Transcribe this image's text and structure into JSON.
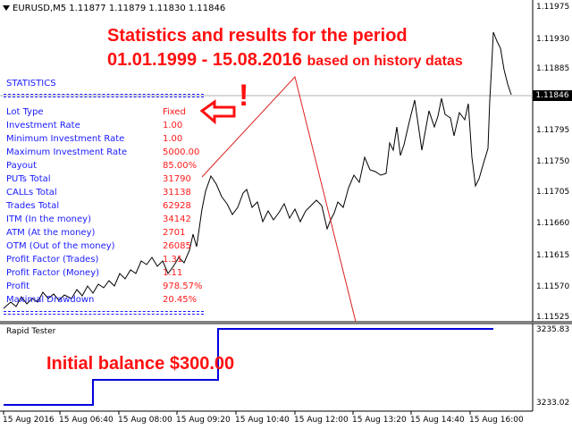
{
  "header": {
    "symbol_info": "EURUSD,M5  1.11877 1.11879 1.11830 1.11846"
  },
  "annotations": {
    "line1": "Statistics and results for the period",
    "line2_main": "01.01.1999 - 15.08.2016",
    "line2_small": "based on history datas",
    "exclamation": "!",
    "initial_balance": "Initial balance $300.00"
  },
  "statistics": {
    "title": "STATISTICS",
    "rows": [
      {
        "label": "Lot Type",
        "value": "Fixed"
      },
      {
        "label": "Investment Rate",
        "value": "1.00"
      },
      {
        "label": "Minimum Investment Rate",
        "value": "1.00"
      },
      {
        "label": "Maximum Investment Rate",
        "value": "5000.00"
      },
      {
        "label": "Payout",
        "value": "85.00%"
      },
      {
        "label": "PUTs Total",
        "value": "31790"
      },
      {
        "label": "CALLs Total",
        "value": "31138"
      },
      {
        "label": "Trades Total",
        "value": "62928"
      },
      {
        "label": "ITM (In the money)",
        "value": "34142"
      },
      {
        "label": "ATM (At the money)",
        "value": "2701"
      },
      {
        "label": "OTM (Out of the money)",
        "value": "26085"
      },
      {
        "label": "Profit Factor (Trades)",
        "value": "1.31"
      },
      {
        "label": "Profit Factor (Money)",
        "value": "1.11"
      },
      {
        "label": "Profit",
        "value": "978.57%"
      },
      {
        "label": "Maximal Drawdown",
        "value": "20.45%"
      }
    ]
  },
  "price_axis": {
    "labels": [
      "1.11975",
      "1.11930",
      "1.11885",
      "1.11795",
      "1.11750",
      "1.11705",
      "1.11660",
      "1.11615",
      "1.11570",
      "1.11525"
    ],
    "current_price": "1.11846"
  },
  "subwindow": {
    "title": "Rapid Tester",
    "top_value": "3235.83",
    "bottom_value": "3233.02"
  },
  "time_axis": {
    "labels": [
      "15 Aug 2016",
      "15 Aug 06:40",
      "15 Aug 08:00",
      "15 Aug 09:20",
      "15 Aug 10:40",
      "15 Aug 12:00",
      "15 Aug 13:20",
      "15 Aug 14:40",
      "15 Aug 16:00"
    ]
  },
  "colors": {
    "stats_label": "#1a1aff",
    "stats_value": "#ff1a1a",
    "annotation": "#ff1010",
    "equity_line": "#0000dd",
    "price_line": "#000000",
    "arrow_line": "#dd2020"
  },
  "icons": {
    "collapse": "triangle-down-icon",
    "pointer_arrow": "left-arrow-icon"
  }
}
